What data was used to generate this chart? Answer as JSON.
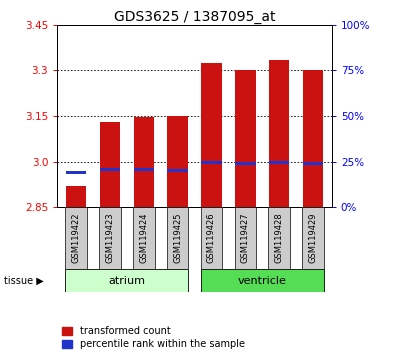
{
  "title": "GDS3625 / 1387095_at",
  "samples": [
    "GSM119422",
    "GSM119423",
    "GSM119424",
    "GSM119425",
    "GSM119426",
    "GSM119427",
    "GSM119428",
    "GSM119429"
  ],
  "red_values": [
    2.92,
    3.13,
    3.145,
    3.15,
    3.325,
    3.3,
    3.335,
    3.3
  ],
  "blue_values": [
    2.965,
    2.975,
    2.975,
    2.972,
    2.997,
    2.992,
    2.997,
    2.992
  ],
  "y_min": 2.85,
  "y_max": 3.45,
  "y_ticks_left": [
    2.85,
    3.0,
    3.15,
    3.3,
    3.45
  ],
  "y_ticks_right": [
    0,
    25,
    50,
    75,
    100
  ],
  "bar_width": 0.6,
  "bar_color": "#cc1111",
  "blue_color": "#2233cc",
  "plot_bg": "#ffffff",
  "legend_red": "transformed count",
  "legend_blue": "percentile rank within the sample",
  "atrium_color": "#ccffcc",
  "ventricle_color": "#55dd55",
  "label_box_color": "#cccccc",
  "title_fontsize": 10,
  "tick_fontsize": 7.5,
  "sample_fontsize": 6,
  "tissue_fontsize": 8,
  "legend_fontsize": 7
}
